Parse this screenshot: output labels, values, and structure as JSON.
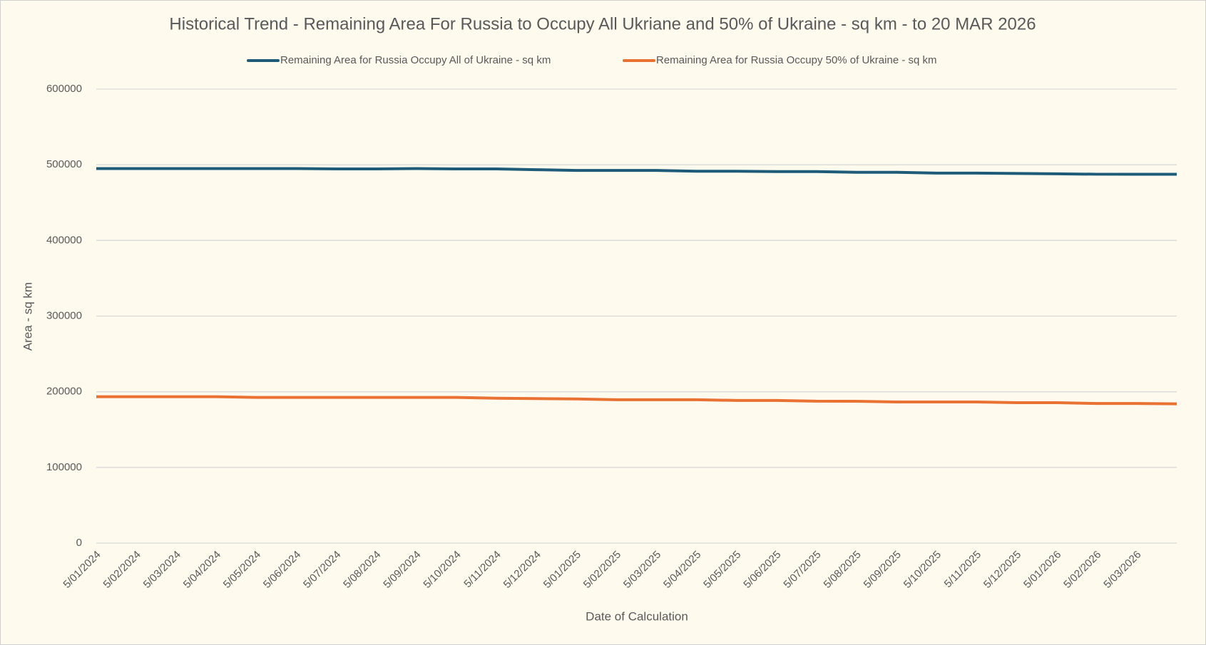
{
  "chart_data": {
    "type": "line",
    "title": "Historical Trend - Remaining Area For Russia to Occupy All Ukriane and 50% of Ukraine - sq km - to 20 MAR 2026",
    "x_label": "Date of Calculation",
    "y_label": "Area - sq km",
    "categories": [
      "5/01/2024",
      "5/02/2024",
      "5/03/2024",
      "5/04/2024",
      "5/05/2024",
      "5/06/2024",
      "5/07/2024",
      "5/08/2024",
      "5/09/2024",
      "5/10/2024",
      "5/11/2024",
      "5/12/2024",
      "5/01/2025",
      "5/02/2025",
      "5/03/2025",
      "5/04/2025",
      "5/05/2025",
      "5/06/2025",
      "5/07/2025",
      "5/08/2025",
      "5/09/2025",
      "5/10/2025",
      "5/11/2025",
      "5/12/2025",
      "5/01/2026",
      "5/02/2026",
      "5/03/2026",
      null
    ],
    "series": [
      {
        "name": "Remaining Area for Russia Occupy All of Ukraine - sq km",
        "color": "#1d5b79",
        "values": [
          495000,
          495000,
          495000,
          495000,
          495000,
          495000,
          494500,
          494500,
          495000,
          494500,
          494500,
          493500,
          492500,
          492500,
          492500,
          491500,
          491500,
          491000,
          491000,
          490000,
          490000,
          489000,
          489000,
          488500,
          488000,
          487500,
          487500,
          487500
        ]
      },
      {
        "name": "Remaining Area for Russia Occupy 50% of Ukraine - sq km",
        "color": "#e97132",
        "values": [
          193500,
          193500,
          193500,
          193500,
          192500,
          192500,
          192500,
          192500,
          192500,
          192500,
          191500,
          191000,
          190500,
          189500,
          189500,
          189500,
          188500,
          188500,
          187500,
          187500,
          186500,
          186500,
          186500,
          185500,
          185500,
          184500,
          184500,
          184000
        ]
      }
    ],
    "ylim": [
      0,
      600000
    ],
    "yticks": [
      0,
      100000,
      200000,
      300000,
      400000,
      500000,
      600000
    ],
    "grid": true,
    "legend": "top"
  }
}
